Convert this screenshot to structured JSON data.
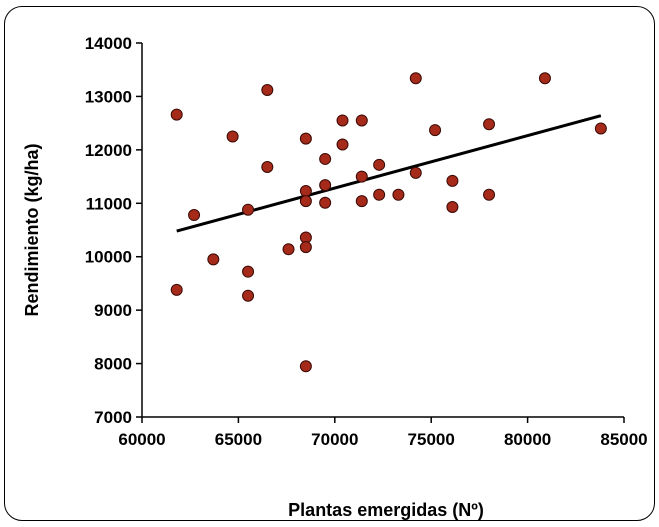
{
  "chart_data": {
    "type": "scatter",
    "title": "",
    "xlabel": "Plantas emergidas (Nº)",
    "ylabel": "Rendimiento (kg/ha)",
    "xlim": [
      60000,
      85000
    ],
    "ylim": [
      7000,
      14000
    ],
    "x_ticks": [
      "60000",
      "65000",
      "70000",
      "75000",
      "80000",
      "85000"
    ],
    "y_ticks": [
      "7000",
      "8000",
      "9000",
      "10000",
      "11000",
      "12000",
      "13000",
      "14000"
    ],
    "grid": false,
    "legend": "none",
    "marker_color": "#a52a1a",
    "trendline_color": "#000000",
    "points": [
      {
        "x": 61800,
        "y": 12660
      },
      {
        "x": 61800,
        "y": 9380
      },
      {
        "x": 62700,
        "y": 10780
      },
      {
        "x": 63700,
        "y": 9950
      },
      {
        "x": 64700,
        "y": 12250
      },
      {
        "x": 65500,
        "y": 10880
      },
      {
        "x": 65500,
        "y": 9720
      },
      {
        "x": 65500,
        "y": 9270
      },
      {
        "x": 66500,
        "y": 13120
      },
      {
        "x": 66500,
        "y": 11680
      },
      {
        "x": 67600,
        "y": 10140
      },
      {
        "x": 68500,
        "y": 12210
      },
      {
        "x": 68500,
        "y": 11230
      },
      {
        "x": 68500,
        "y": 11040
      },
      {
        "x": 68500,
        "y": 10360
      },
      {
        "x": 68500,
        "y": 10180
      },
      {
        "x": 68500,
        "y": 7950
      },
      {
        "x": 69500,
        "y": 11830
      },
      {
        "x": 69500,
        "y": 11340
      },
      {
        "x": 69500,
        "y": 11010
      },
      {
        "x": 70400,
        "y": 12550
      },
      {
        "x": 70400,
        "y": 12100
      },
      {
        "x": 71400,
        "y": 12550
      },
      {
        "x": 71400,
        "y": 11500
      },
      {
        "x": 71400,
        "y": 11040
      },
      {
        "x": 72300,
        "y": 11720
      },
      {
        "x": 72300,
        "y": 11160
      },
      {
        "x": 73300,
        "y": 11160
      },
      {
        "x": 74200,
        "y": 13340
      },
      {
        "x": 74200,
        "y": 11570
      },
      {
        "x": 75200,
        "y": 12370
      },
      {
        "x": 76100,
        "y": 11420
      },
      {
        "x": 76100,
        "y": 10930
      },
      {
        "x": 78000,
        "y": 12480
      },
      {
        "x": 78000,
        "y": 11160
      },
      {
        "x": 80900,
        "y": 13340
      },
      {
        "x": 83800,
        "y": 12400
      }
    ],
    "trendline": {
      "x": [
        61800,
        83800
      ],
      "y": [
        10480,
        12640
      ]
    }
  }
}
